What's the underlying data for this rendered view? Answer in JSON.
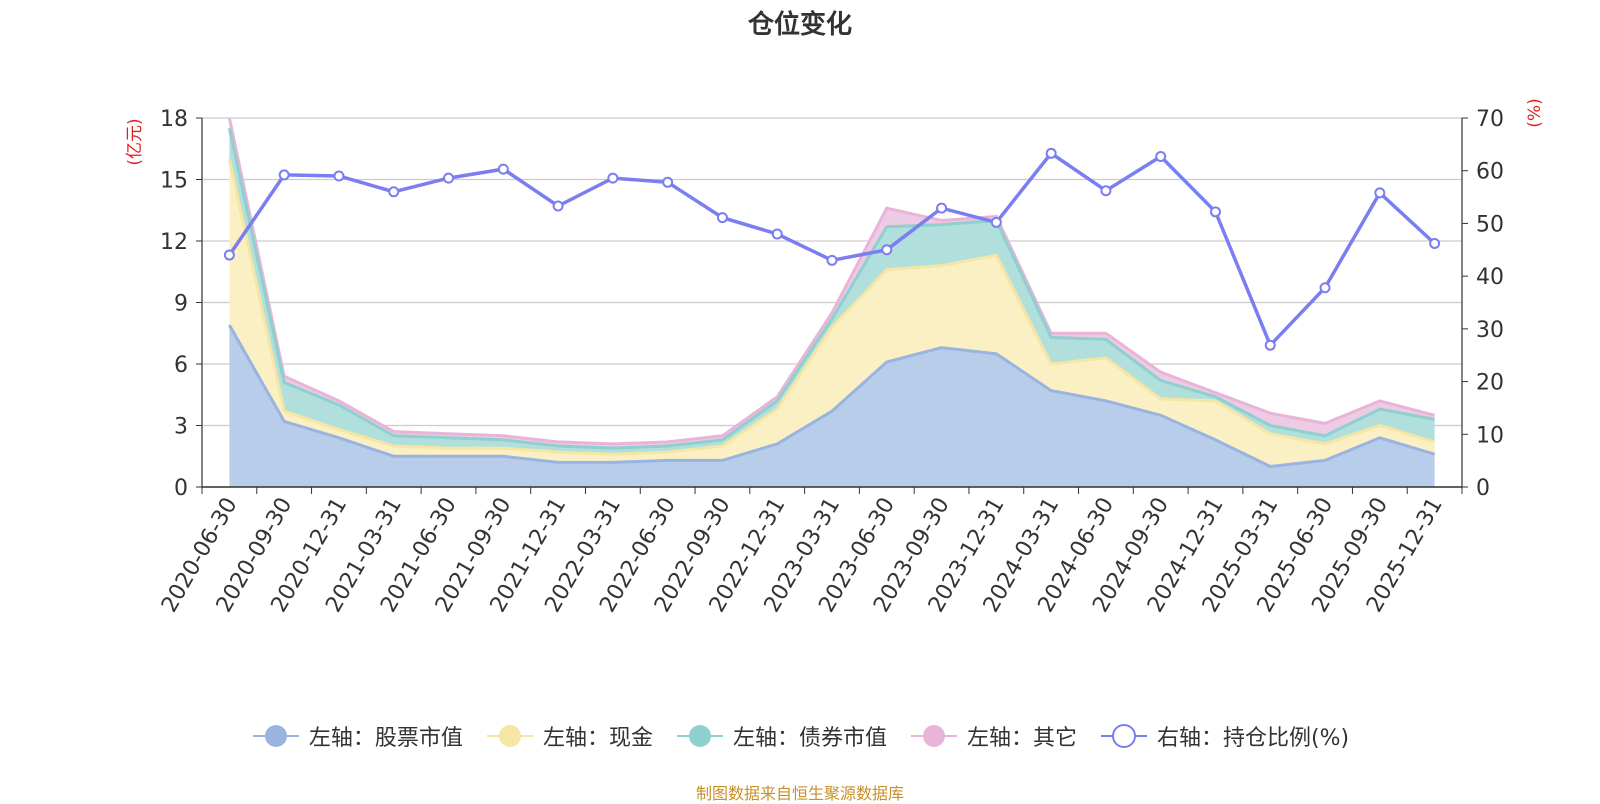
{
  "title": "仓位变化",
  "source": "制图数据来自恒生聚源数据库",
  "chart_data": {
    "type": "area",
    "categories": [
      "2020-06-30",
      "2020-09-30",
      "2020-12-31",
      "2021-03-31",
      "2021-06-30",
      "2021-09-30",
      "2021-12-31",
      "2022-03-31",
      "2022-06-30",
      "2022-09-30",
      "2022-12-31",
      "2023-03-31",
      "2023-06-30",
      "2023-09-30",
      "2023-12-31",
      "2024-03-31",
      "2024-06-30",
      "2024-09-30",
      "2024-12-31",
      "2025-03-31",
      "2025-06-30",
      "2025-09-30",
      "2025-12-31"
    ],
    "left_axis": {
      "label": "(亿元)",
      "ticks": [
        "0",
        "3",
        "6",
        "9",
        "12",
        "15",
        "18"
      ],
      "range": [
        0,
        18
      ]
    },
    "right_axis": {
      "label": "(%)",
      "ticks": [
        "0",
        "10",
        "20",
        "30",
        "40",
        "50",
        "60",
        "70"
      ],
      "range": [
        0,
        70
      ]
    },
    "series": [
      {
        "name": "左轴：股票市值",
        "axis": "left",
        "stack": true,
        "color": "#9ab4e0",
        "fill": "#b8cdea",
        "values": [
          7.9,
          3.2,
          2.4,
          1.5,
          1.5,
          1.5,
          1.2,
          1.2,
          1.3,
          1.3,
          2.1,
          3.7,
          6.1,
          6.8,
          6.5,
          4.7,
          4.2,
          3.5,
          2.3,
          1.0,
          1.3,
          2.4,
          1.6
        ]
      },
      {
        "name": "左轴：现金",
        "axis": "left",
        "stack": true,
        "color": "#f5e6a4",
        "fill": "#fbefc4",
        "values": [
          8.1,
          0.5,
          0.4,
          0.5,
          0.4,
          0.4,
          0.5,
          0.4,
          0.4,
          0.7,
          1.7,
          4.1,
          4.5,
          4.0,
          4.8,
          1.3,
          2.1,
          0.8,
          1.9,
          1.6,
          0.8,
          0.6,
          0.6
        ]
      },
      {
        "name": "左轴：债券市值",
        "axis": "left",
        "stack": true,
        "color": "#8fd0ce",
        "fill": "#b0dfdc",
        "values": [
          1.5,
          1.4,
          1.2,
          0.5,
          0.5,
          0.4,
          0.3,
          0.3,
          0.3,
          0.3,
          0.4,
          0.4,
          2.1,
          2.0,
          1.7,
          1.3,
          0.9,
          0.9,
          0.2,
          0.4,
          0.4,
          0.8,
          1.1
        ]
      },
      {
        "name": "左轴：其它",
        "axis": "left",
        "stack": true,
        "color": "#e8b4d8",
        "fill": "#eecbe4",
        "values": [
          0.5,
          0.3,
          0.2,
          0.2,
          0.2,
          0.2,
          0.2,
          0.2,
          0.2,
          0.2,
          0.2,
          0.3,
          0.9,
          0.2,
          0.2,
          0.2,
          0.3,
          0.4,
          0.2,
          0.6,
          0.6,
          0.4,
          0.2
        ]
      },
      {
        "name": "右轴：持仓比例(%)",
        "axis": "right",
        "stack": false,
        "color": "#7a7ef0",
        "values": [
          44.0,
          59.2,
          59.0,
          56.0,
          58.6,
          60.3,
          53.3,
          58.6,
          57.8,
          51.1,
          48.0,
          43.0,
          45.0,
          52.9,
          50.2,
          63.3,
          56.2,
          62.7,
          52.2,
          26.9,
          37.8,
          55.8,
          46.2
        ]
      }
    ]
  }
}
